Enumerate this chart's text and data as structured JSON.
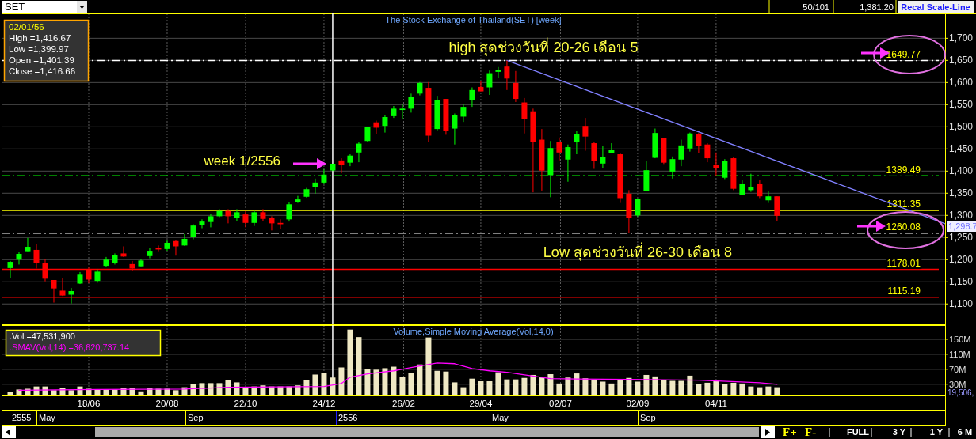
{
  "chart_data": [
    {
      "type": "candlestick",
      "title": "The Stock Exchange of Thailand(SET) [week]",
      "series": [
        {
          "color": "#00ff00",
          "x": [
            "2012-04-16",
            "2012-04-23",
            "2012-04-30",
            "2012-06-04",
            "2012-06-11",
            "2012-06-25",
            "2012-07-02",
            "2012-07-09",
            "2012-07-30",
            "2012-08-06",
            "2012-08-20",
            "2012-09-03",
            "2012-09-10",
            "2012-09-17",
            "2012-09-24",
            "2012-10-01",
            "2012-10-15",
            "2012-10-29",
            "2012-11-26",
            "2012-12-03",
            "2012-12-10",
            "2012-12-17",
            "2012-12-24",
            "2012-12-31",
            "2013-01-14",
            "2013-01-21",
            "2013-01-28",
            "2013-02-11",
            "2013-02-18",
            "2013-02-25",
            "2013-03-04",
            "2013-03-11",
            "2013-03-25",
            "2013-04-08",
            "2013-04-15",
            "2013-04-22",
            "2013-05-06",
            "2013-05-13",
            "2013-06-24",
            "2013-07-08",
            "2013-07-15",
            "2013-08-05",
            "2013-08-12",
            "2013-09-02",
            "2013-09-09",
            "2013-09-16",
            "2013-09-30",
            "2013-10-07",
            "2013-10-14",
            "2013-11-11",
            "2013-11-25",
            "2013-12-02",
            "2013-12-16"
          ],
          "ohlc": [
            [
              1181,
              1197,
              1158,
              1195
            ],
            [
              1200,
              1217,
              1189,
              1213
            ],
            [
              1219,
              1249,
              1219,
              1229
            ],
            [
              1121,
              1136,
              1101,
              1129
            ],
            [
              1146,
              1172,
              1145,
              1166
            ],
            [
              1152,
              1178,
              1148,
              1173
            ],
            [
              1186,
              1206,
              1183,
              1200
            ],
            [
              1192,
              1214,
              1189,
              1211
            ],
            [
              1185,
              1202,
              1185,
              1198
            ],
            [
              1208,
              1226,
              1203,
              1220
            ],
            [
              1224,
              1244,
              1220,
              1238
            ],
            [
              1232,
              1258,
              1231,
              1247
            ],
            [
              1252,
              1280,
              1246,
              1277
            ],
            [
              1279,
              1291,
              1271,
              1286
            ],
            [
              1285,
              1303,
              1273,
              1298
            ],
            [
              1298,
              1314,
              1296,
              1310
            ],
            [
              1295,
              1314,
              1288,
              1307
            ],
            [
              1283,
              1313,
              1276,
              1307
            ],
            [
              1291,
              1329,
              1286,
              1325
            ],
            [
              1330,
              1344,
              1328,
              1336
            ],
            [
              1342,
              1362,
              1340,
              1359
            ],
            [
              1364,
              1383,
              1349,
              1374
            ],
            [
              1374,
              1404,
              1372,
              1392
            ],
            [
              1401.39,
              1416.67,
              1399.97,
              1416.66
            ],
            [
              1419,
              1438,
              1411,
              1435
            ],
            [
              1442,
              1465,
              1420,
              1462
            ],
            [
              1468,
              1499,
              1465,
              1499
            ],
            [
              1502,
              1527,
              1487,
              1522
            ],
            [
              1524,
              1547,
              1520,
              1541
            ],
            [
              1538,
              1552,
              1518,
              1541
            ],
            [
              1541,
              1575,
              1532,
              1567
            ],
            [
              1575,
              1601,
              1571,
              1599
            ],
            [
              1495,
              1570,
              1492,
              1561
            ],
            [
              1496,
              1530,
              1460,
              1527
            ],
            [
              1523,
              1552,
              1511,
              1545
            ],
            [
              1560,
              1589,
              1545,
              1583
            ],
            [
              1589,
              1627,
              1572,
              1621
            ],
            [
              1624,
              1635,
              1610,
              1629
            ],
            [
              1391,
              1468,
              1341,
              1452
            ],
            [
              1426,
              1460,
              1376,
              1454
            ],
            [
              1465,
              1491,
              1438,
              1483
            ],
            [
              1417,
              1456,
              1407,
              1432
            ],
            [
              1440,
              1463,
              1440,
              1447
            ],
            [
              1300,
              1337,
              1297,
              1337
            ],
            [
              1355,
              1422,
              1354,
              1402
            ],
            [
              1430,
              1496,
              1429,
              1486
            ],
            [
              1399,
              1433,
              1383,
              1427
            ],
            [
              1426,
              1471,
              1411,
              1458
            ],
            [
              1451,
              1487,
              1444,
              1485
            ],
            [
              1385,
              1427,
              1382,
              1422
            ],
            [
              1347,
              1379,
              1346,
              1372
            ],
            [
              1357,
              1394,
              1353,
              1363
            ],
            [
              1334,
              1354,
              1328,
              1343
            ]
          ]
        },
        {
          "color": "#ff0000",
          "x": [
            "2012-05-07",
            "2012-05-14",
            "2012-05-21",
            "2012-05-28",
            "2012-06-18",
            "2012-07-16",
            "2012-07-23",
            "2012-08-13",
            "2012-08-27",
            "2012-10-08",
            "2012-10-22",
            "2012-11-05",
            "2012-11-12",
            "2012-11-19",
            "2013-01-07",
            "2013-02-04",
            "2013-03-18",
            "2013-04-01",
            "2013-04-29",
            "2013-05-20",
            "2013-05-27",
            "2013-06-03",
            "2013-06-10",
            "2013-06-17",
            "2013-07-01",
            "2013-07-22",
            "2013-07-29",
            "2013-08-19",
            "2013-08-26",
            "2013-09-23",
            "2013-10-21",
            "2013-10-28",
            "2013-11-04",
            "2013-11-18",
            "2013-12-09",
            "2013-12-23"
          ],
          "ohlc": [
            [
              1222,
              1235,
              1180,
              1192
            ],
            [
              1192,
              1202,
              1151,
              1157
            ],
            [
              1154,
              1154,
              1103,
              1135
            ],
            [
              1130,
              1158,
              1118,
              1119
            ],
            [
              1179,
              1182,
              1147,
              1155
            ],
            [
              1214,
              1230,
              1206,
              1207
            ],
            [
              1190,
              1197,
              1174,
              1180
            ],
            [
              1226,
              1232,
              1219,
              1223
            ],
            [
              1242,
              1245,
              1209,
              1230
            ],
            [
              1310,
              1314,
              1282,
              1298
            ],
            [
              1302,
              1310,
              1273,
              1283
            ],
            [
              1307,
              1314,
              1288,
              1292
            ],
            [
              1295,
              1298,
              1266,
              1282
            ],
            [
              1283,
              1291,
              1269,
              1280
            ],
            [
              1424,
              1429,
              1395,
              1413
            ],
            [
              1510,
              1514,
              1483,
              1498
            ],
            [
              1588,
              1601,
              1465,
              1480
            ],
            [
              1563,
              1563,
              1482,
              1491
            ],
            [
              1590,
              1603,
              1580,
              1580
            ],
            [
              1636,
              1649.77,
              1583,
              1609
            ],
            [
              1599,
              1626,
              1556,
              1563
            ],
            [
              1555,
              1565,
              1485,
              1517
            ],
            [
              1535,
              1541,
              1352,
              1465
            ],
            [
              1471,
              1495,
              1356,
              1401
            ],
            [
              1465,
              1476,
              1424,
              1442
            ],
            [
              1502,
              1520,
              1446,
              1478
            ],
            [
              1463,
              1465,
              1405,
              1422
            ],
            [
              1438,
              1441,
              1328,
              1339
            ],
            [
              1349,
              1357,
              1260.08,
              1295
            ],
            [
              1474,
              1474,
              1416,
              1419
            ],
            [
              1484,
              1486,
              1440,
              1456
            ],
            [
              1460,
              1463,
              1420,
              1429
            ],
            [
              1413,
              1442,
              1389,
              1407
            ],
            [
              1429,
              1431,
              1357,
              1360
            ],
            [
              1372,
              1379,
              1339,
              1343
            ],
            [
              1343,
              1343,
              1288,
              1299
            ]
          ]
        },
        {
          "type": "line",
          "color": "#8080ff",
          "x": [
            "2013-05-20",
            "2014-05-07"
          ],
          "values": [
            1650,
            1281
          ]
        }
      ],
      "xlim": [
        "2012-04-09",
        "2014-05-07"
      ],
      "xticks": [
        {
          "value": "2012-06-18",
          "label": null
        },
        {
          "value": "2012-08-20",
          "label": null
        },
        {
          "value": "2012-10-22",
          "label": null
        },
        {
          "value": "2012-12-24",
          "label": null
        },
        {
          "value": "2013-02-26",
          "label": null
        },
        {
          "value": "2013-04-29",
          "label": null
        },
        {
          "value": "2013-07-02",
          "label": null
        },
        {
          "value": "2013-09-02",
          "label": null
        },
        {
          "value": "2013-11-04",
          "label": null
        }
      ],
      "ylim": [
        1054,
        1756
      ],
      "yticks": [
        {
          "value": 1100,
          "label": "1,100"
        },
        {
          "value": 1150,
          "label": "1,150"
        },
        {
          "value": 1200,
          "label": "1,200"
        },
        {
          "value": 1250,
          "label": "1,250"
        },
        {
          "value": 1300,
          "label": "1,300"
        },
        {
          "value": 1350,
          "label": "1,350"
        },
        {
          "value": 1400,
          "label": "1,400"
        },
        {
          "value": 1450,
          "label": "1,450"
        },
        {
          "value": 1500,
          "label": "1,500"
        },
        {
          "value": 1550,
          "label": "1,550"
        },
        {
          "value": 1600,
          "label": "1,600"
        },
        {
          "value": 1650,
          "label": "1,650"
        },
        {
          "value": 1700,
          "label": "1,700"
        }
      ],
      "tick_labels": "y",
      "grid": true,
      "ref_lines": [
        {
          "axis": "y",
          "value": 1649.77,
          "label": "1649.77",
          "color": "#ffffff",
          "line_style": "dashed"
        },
        {
          "axis": "y",
          "value": 1389.49,
          "label": "1389.49",
          "color": "#00ff00",
          "line_style": "dashed"
        },
        {
          "axis": "y",
          "value": 1311.35,
          "label": "1311.35",
          "color": "#ffff00",
          "line_style": "solid"
        },
        {
          "axis": "y",
          "value": 1260.08,
          "label": "1260.08",
          "color": "#ffffff",
          "line_style": "dashed"
        },
        {
          "axis": "y",
          "value": 1178.01,
          "label": "1178.01",
          "color": "#ff0000",
          "line_style": "solid"
        },
        {
          "axis": "y",
          "value": 1115.19,
          "label": "1115.19",
          "color": "#ff0000",
          "line_style": "solid"
        },
        {
          "axis": "x",
          "value": "2012-12-31",
          "color": "#ffffff",
          "line_style": "solid"
        }
      ],
      "annotations": [
        "02/01/56",
        "High =1,416.67",
        "Low =1,399.97",
        "Open =1,401.39",
        "Close =1,416.66",
        {
          "text": "high สุดช่วงวันที่ 20-26 เดือน 5",
          "x": "2013-05-20",
          "y": 1649.77
        },
        {
          "text": "Low สุดช่วงวันที่ 26-30 เดือน 8",
          "x": "2013-08-26",
          "y": 1260.08
        },
        "week 1/2556",
        "1,298.7",
        "SET",
        "50/101",
        "1,381.20",
        "Recal Scale-Line"
      ]
    },
    {
      "type": "bar",
      "title": "Volume,Simple Moving Average(Vol,14,0)",
      "x": [
        "2012-04-16",
        "2012-04-23",
        "2012-04-30",
        "2012-05-07",
        "2012-05-14",
        "2012-05-21",
        "2012-05-28",
        "2012-06-04",
        "2012-06-11",
        "2012-06-18",
        "2012-06-25",
        "2012-07-02",
        "2012-07-09",
        "2012-07-16",
        "2012-07-23",
        "2012-07-30",
        "2012-08-06",
        "2012-08-13",
        "2012-08-20",
        "2012-08-27",
        "2012-09-03",
        "2012-09-10",
        "2012-09-17",
        "2012-09-24",
        "2012-10-01",
        "2012-10-08",
        "2012-10-15",
        "2012-10-22",
        "2012-10-29",
        "2012-11-05",
        "2012-11-12",
        "2012-11-19",
        "2012-11-26",
        "2012-12-03",
        "2012-12-10",
        "2012-12-17",
        "2012-12-24",
        "2012-12-31",
        "2013-01-07",
        "2013-01-14",
        "2013-01-21",
        "2013-01-28",
        "2013-02-04",
        "2013-02-11",
        "2013-02-18",
        "2013-02-25",
        "2013-03-04",
        "2013-03-11",
        "2013-03-18",
        "2013-03-25",
        "2013-04-01",
        "2013-04-08",
        "2013-04-15",
        "2013-04-22",
        "2013-04-29",
        "2013-05-06",
        "2013-05-13",
        "2013-05-20",
        "2013-05-27",
        "2013-06-03",
        "2013-06-10",
        "2013-06-17",
        "2013-06-24",
        "2013-07-01",
        "2013-07-08",
        "2013-07-15",
        "2013-07-22",
        "2013-07-29",
        "2013-08-05",
        "2013-08-12",
        "2013-08-19",
        "2013-08-26",
        "2013-09-02",
        "2013-09-09",
        "2013-09-16",
        "2013-09-23",
        "2013-09-30",
        "2013-10-07",
        "2013-10-14",
        "2013-10-21",
        "2013-10-28",
        "2013-11-04",
        "2013-11-11",
        "2013-11-18",
        "2013-11-25",
        "2013-12-02",
        "2013-12-09",
        "2013-12-16",
        "2013-12-23"
      ],
      "series": [
        {
          "color": "#efe8c4",
          "values": [
            9,
            16,
            18,
            24,
            24,
            14,
            20,
            14,
            24,
            18,
            16,
            16,
            16,
            20,
            20,
            11,
            20,
            18,
            18,
            14,
            22,
            31,
            33,
            33,
            33,
            42,
            35,
            22,
            24,
            27,
            24,
            24,
            24,
            27,
            42,
            56,
            60,
            48,
            75,
            176,
            156,
            70,
            69,
            73,
            77,
            49,
            60,
            83,
            155,
            66,
            64,
            35,
            22,
            45,
            38,
            38,
            62,
            43,
            43,
            47,
            55,
            49,
            57,
            32,
            48,
            59,
            46,
            43,
            37,
            32,
            44,
            47,
            37,
            55,
            51,
            41,
            39,
            39,
            53,
            30,
            34,
            41,
            30,
            34,
            32,
            24,
            22,
            24,
            22
          ]
        },
        {
          "type": "line",
          "color": "#ff00ff",
          "x": [
            "2012-04-23",
            "2012-06-25",
            "2012-09-03",
            "2012-10-08",
            "2012-12-24",
            "2013-01-07",
            "2013-01-14",
            "2013-01-28",
            "2013-02-18",
            "2013-03-11",
            "2013-03-25",
            "2013-04-08",
            "2013-04-22",
            "2013-05-06",
            "2013-05-20",
            "2013-06-24",
            "2013-07-15",
            "2013-08-26",
            "2013-10-21",
            "2013-12-09",
            "2013-12-23"
          ],
          "values": [
            14,
            16,
            17,
            22,
            24,
            32,
            49,
            58,
            66,
            79,
            87,
            85,
            72,
            66,
            62,
            45,
            44,
            43,
            41,
            34,
            30
          ]
        }
      ],
      "xlim": [
        "2012-04-09",
        "2014-05-07"
      ],
      "xticks": [
        {
          "value": "2012-06-18",
          "label": "18/06"
        },
        {
          "value": "2012-08-20",
          "label": "20/08"
        },
        {
          "value": "2012-10-22",
          "label": "22/10"
        },
        {
          "value": "2012-12-24",
          "label": "24/12"
        },
        {
          "value": "2013-02-26",
          "label": "26/02"
        },
        {
          "value": "2013-04-29",
          "label": "29/04"
        },
        {
          "value": "2013-07-02",
          "label": "02/07"
        },
        {
          "value": "2013-09-02",
          "label": "02/09"
        },
        {
          "value": "2013-11-04",
          "label": "04/11"
        }
      ],
      "ylim": [
        0,
        188
      ],
      "yticks": [
        {
          "value": 30,
          "label": "30M"
        },
        {
          "value": 70,
          "label": "70M"
        },
        {
          "value": 110,
          "label": "110M"
        },
        {
          "value": 150,
          "label": "150M"
        }
      ],
      "grid": true,
      "ref_lines": [
        {
          "axis": "x",
          "value": "2012-12-31",
          "color": "#ffffff",
          "line_style": "solid"
        }
      ],
      "annotations": [
        ".Vol =47,531,900",
        ".SMAV(Vol,14) =36,620,737.14",
        "19,506,",
        "2555",
        "May",
        "Sep",
        "2556",
        "May",
        "Sep",
        "F+",
        "F-",
        "FULL",
        "3 Y",
        "1 Y",
        "6 M"
      ]
    }
  ]
}
